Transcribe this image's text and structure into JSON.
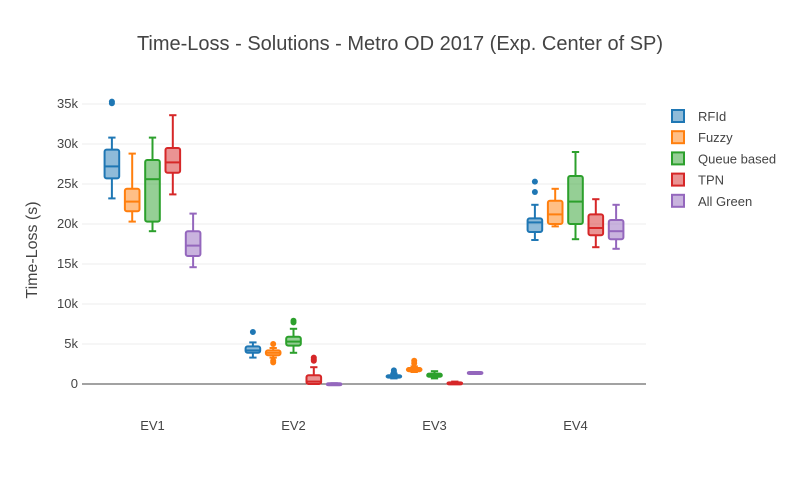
{
  "chart_data": {
    "type": "box",
    "title": "Time-Loss - Solutions - Metro OD 2017 (Exp. Center of SP)",
    "ylabel": "Time-Loss (s)",
    "xlabel": "",
    "ylim": [
      -2000,
      38000
    ],
    "yticks": [
      0,
      5000,
      10000,
      15000,
      20000,
      25000,
      30000,
      35000
    ],
    "ytick_labels": [
      "0",
      "5k",
      "10k",
      "15k",
      "20k",
      "25k",
      "30k",
      "35k"
    ],
    "categories": [
      "EV1",
      "EV2",
      "EV3",
      "EV4"
    ],
    "legend_position": "right",
    "grid": true,
    "series": [
      {
        "name": "RFId",
        "color": "#1f77b4",
        "boxes": [
          {
            "min": 23200,
            "q1": 25700,
            "median": 27200,
            "q3": 29300,
            "max": 30800,
            "outliers": [
              35100,
              35300
            ]
          },
          {
            "min": 3300,
            "q1": 3900,
            "median": 4200,
            "q3": 4700,
            "max": 5200,
            "outliers": [
              6500
            ]
          },
          {
            "min": 700,
            "q1": 800,
            "median": 1000,
            "q3": 1100,
            "max": 1300,
            "outliers": [
              1500,
              1700
            ]
          },
          {
            "min": 18000,
            "q1": 19000,
            "median": 20200,
            "q3": 20700,
            "max": 22400,
            "outliers": [
              24000,
              25300
            ]
          }
        ]
      },
      {
        "name": "Fuzzy",
        "color": "#ff7f0e",
        "boxes": [
          {
            "min": 20300,
            "q1": 21600,
            "median": 22800,
            "q3": 24400,
            "max": 28800,
            "outliers": []
          },
          {
            "min": 3300,
            "q1": 3600,
            "median": 3900,
            "q3": 4200,
            "max": 4500,
            "outliers": [
              2700,
              2900,
              5000
            ]
          },
          {
            "min": 1500,
            "q1": 1600,
            "median": 1800,
            "q3": 2000,
            "max": 2200,
            "outliers": [
              2600,
              2900
            ]
          },
          {
            "min": 19700,
            "q1": 20000,
            "median": 21200,
            "q3": 22900,
            "max": 24400,
            "outliers": []
          }
        ]
      },
      {
        "name": "Queue based",
        "color": "#2ca02c",
        "boxes": [
          {
            "min": 19100,
            "q1": 20300,
            "median": 25600,
            "q3": 28000,
            "max": 30800,
            "outliers": []
          },
          {
            "min": 3900,
            "q1": 4800,
            "median": 5300,
            "q3": 5900,
            "max": 6900,
            "outliers": [
              7700,
              7900
            ]
          },
          {
            "min": 700,
            "q1": 900,
            "median": 1100,
            "q3": 1300,
            "max": 1600,
            "outliers": []
          },
          {
            "min": 18100,
            "q1": 20000,
            "median": 22800,
            "q3": 26000,
            "max": 29000,
            "outliers": []
          }
        ]
      },
      {
        "name": "TPN",
        "color": "#d62728",
        "boxes": [
          {
            "min": 23700,
            "q1": 26400,
            "median": 27700,
            "q3": 29500,
            "max": 33600,
            "outliers": []
          },
          {
            "min": 0,
            "q1": 0,
            "median": 300,
            "q3": 1100,
            "max": 2100,
            "outliers": [
              2900,
              3100,
              3300
            ]
          },
          {
            "min": 0,
            "q1": 0,
            "median": 100,
            "q3": 200,
            "max": 300,
            "outliers": []
          },
          {
            "min": 17100,
            "q1": 18600,
            "median": 19500,
            "q3": 21200,
            "max": 23100,
            "outliers": []
          }
        ]
      },
      {
        "name": "All Green",
        "color": "#9467bd",
        "boxes": [
          {
            "min": 14600,
            "q1": 16000,
            "median": 17300,
            "q3": 19100,
            "max": 21300,
            "outliers": []
          },
          {
            "min": 0,
            "q1": 0,
            "median": 0,
            "q3": 100,
            "max": 100,
            "outliers": []
          },
          {
            "min": 1300,
            "q1": 1300,
            "median": 1400,
            "q3": 1500,
            "max": 1500,
            "outliers": []
          },
          {
            "min": 16900,
            "q1": 18100,
            "median": 19100,
            "q3": 20500,
            "max": 22400,
            "outliers": []
          }
        ]
      }
    ]
  }
}
